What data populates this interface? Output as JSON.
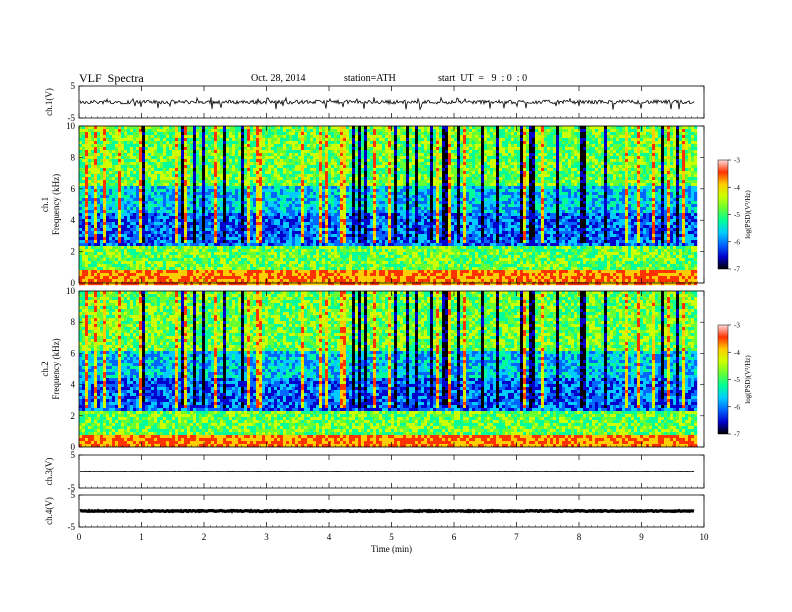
{
  "header": {
    "title": "VLF  Spectra",
    "date": "Oct. 28, 2014",
    "station": "station=ATH",
    "start_ut": "start  UT  =   9  : 0  : 0"
  },
  "chart_data": [
    {
      "type": "line",
      "panel": "ch1-waveform",
      "ylabel": "ch.1(V)",
      "ylim": [
        -5,
        5
      ],
      "yticks": [
        "5",
        "-5"
      ],
      "baseline": 0,
      "noise_amplitude": 0.6,
      "color": "#000000"
    },
    {
      "type": "heatmap",
      "panel": "ch1-spectrogram",
      "ylabel": "Frequency  (kHz)",
      "ychannel": "ch.1",
      "ylim": [
        0,
        10
      ],
      "yticks": [
        "0",
        "2",
        "4",
        "6",
        "8",
        "10"
      ],
      "colorbar": {
        "label": "log(PSD)(V²/Hz)",
        "range": [
          -7,
          -3
        ],
        "ticks": [
          "-3",
          "-4",
          "-5",
          "-6",
          "-7"
        ]
      }
    },
    {
      "type": "heatmap",
      "panel": "ch2-spectrogram",
      "ylabel": "Frequency  (kHz)",
      "ychannel": "ch.2",
      "ylim": [
        0,
        10
      ],
      "yticks": [
        "0",
        "2",
        "4",
        "6",
        "8",
        "10"
      ],
      "colorbar": {
        "label": "log(PSD)(V²/Hz)",
        "range": [
          -7,
          -3
        ],
        "ticks": [
          "-3",
          "-4",
          "-5",
          "-6",
          "-7"
        ]
      }
    },
    {
      "type": "line",
      "panel": "ch3-waveform",
      "ylabel": "ch.3(V)",
      "ylim": [
        -5,
        5
      ],
      "yticks": [
        "5",
        "-5"
      ],
      "baseline": 0,
      "noise_amplitude": 0.05,
      "color": "#000000"
    },
    {
      "type": "line",
      "panel": "ch4-waveform",
      "ylabel": "ch.4(V)",
      "ylim": [
        -5,
        5
      ],
      "yticks": [
        "5",
        "-5"
      ],
      "baseline": 0,
      "noise_amplitude": 0.15,
      "color": "#000000"
    }
  ],
  "xaxis": {
    "label": "Time  (min)",
    "range": [
      0,
      10
    ],
    "data_end": 9.85,
    "ticks": [
      "0",
      "1",
      "2",
      "3",
      "4",
      "5",
      "6",
      "7",
      "8",
      "9",
      "10"
    ]
  },
  "colormap": [
    "#000000",
    "#0000cc",
    "#0066ff",
    "#00ccff",
    "#00ff99",
    "#66ff33",
    "#ccff00",
    "#ffcc00",
    "#ff3300",
    "#ffdddd"
  ]
}
